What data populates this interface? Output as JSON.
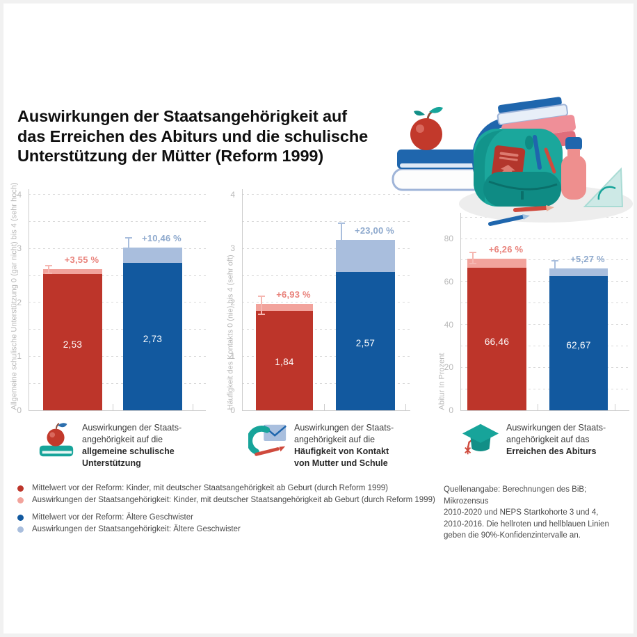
{
  "header": {
    "title_lines": [
      "Auswirkungen der Staatsangehörigkeit auf",
      "das Erreichen des Abiturs und die schulische",
      "Unterstützung der Mütter (Reform 1999)"
    ]
  },
  "colors": {
    "dark_red": "#bd352a",
    "light_red": "#f2a39c",
    "red_annotation": "#e9837c",
    "red_error": "#f5b7b1",
    "dark_blue": "#12599f",
    "light_blue": "#a9bedd",
    "blue_annotation": "#8ea9cd",
    "blue_error": "#a9bedd",
    "teal": "#17a49a",
    "grid": "#d9d9d9",
    "axis": "#cccccc",
    "tick_text": "#b9b9b9",
    "bar_label": "#ffffff"
  },
  "chart_data": [
    {
      "type": "bar",
      "ylabel": "Allgemeine schulische Unterstützung 0 (gar nicht) bis 4 (sehr hoch)",
      "ylim": [
        0,
        4.1
      ],
      "yticks": [
        0,
        1,
        2,
        3,
        4
      ],
      "grid_step": 0.5,
      "grid": true,
      "legend_position": "bottom",
      "bars": [
        {
          "name": "Kinder, mit deutscher Staatsangehörigkeit ab Geburt (durch Reform 1999)",
          "base_value": 2.53,
          "base_label": "2,53",
          "effect_percent_label": "+3,55 %",
          "total_value": 2.62,
          "ci_low": 2.54,
          "ci_high": 2.68,
          "palette": "red"
        },
        {
          "name": "Ältere Geschwister",
          "base_value": 2.73,
          "base_label": "2,73",
          "effect_percent_label": "+10,46 %",
          "total_value": 3.02,
          "ci_low": 2.81,
          "ci_high": 3.2,
          "palette": "blue"
        }
      ]
    },
    {
      "type": "bar",
      "ylabel": "Häufigkeit des Kontakts 0 (nie) bis 4 (sehr oft)",
      "ylim": [
        0,
        4.1
      ],
      "yticks": [
        0,
        1,
        2,
        3,
        4
      ],
      "grid_step": 0.5,
      "grid": true,
      "legend_position": "bottom",
      "bars": [
        {
          "name": "Kinder, mit deutscher Staatsangehörigkeit ab Geburt (durch Reform 1999)",
          "base_value": 1.84,
          "base_label": "1,84",
          "effect_percent_label": "+6,93 %",
          "total_value": 1.97,
          "ci_low": 1.78,
          "ci_high": 2.12,
          "palette": "red"
        },
        {
          "name": "Ältere Geschwister",
          "base_value": 2.57,
          "base_label": "2,57",
          "effect_percent_label": "+23,00 %",
          "total_value": 3.16,
          "ci_low": 2.88,
          "ci_high": 3.47,
          "palette": "blue"
        }
      ]
    },
    {
      "type": "bar",
      "ylabel": "Abitur In Prozent",
      "ylim": [
        0,
        92
      ],
      "yticks": [
        0,
        20,
        40,
        60,
        80
      ],
      "grid_step": 10,
      "grid": true,
      "legend_position": "bottom",
      "bars": [
        {
          "name": "Kinder, mit deutscher Staatsangehörigkeit ab Geburt (durch Reform 1999)",
          "base_value": 66.46,
          "base_label": "66,46",
          "effect_percent_label": "+6,26 %",
          "total_value": 70.62,
          "ci_low": 68.3,
          "ci_high": 73.4,
          "palette": "red"
        },
        {
          "name": "Ältere Geschwister",
          "base_value": 62.67,
          "base_label": "62,67",
          "effect_percent_label": "+5,27 %",
          "total_value": 65.97,
          "ci_low": 63.0,
          "ci_high": 69.5,
          "palette": "blue"
        }
      ]
    }
  ],
  "captions": [
    {
      "icon": "apple-on-book-icon",
      "prefix_lines": [
        "Auswirkungen der Staats-",
        "angehörigkeit auf die"
      ],
      "bold_lines": [
        "allgemeine schulische",
        "Unterstützung"
      ]
    },
    {
      "icon": "phone-envelope-icon",
      "prefix_lines": [
        "Auswirkungen der Staats-",
        "angehörigkeit auf die"
      ],
      "bold_lines": [
        "Häufigkeit von Kontakt",
        "von Mutter und Schule"
      ]
    },
    {
      "icon": "graduation-cap-icon",
      "prefix_lines": [
        "Auswirkungen der Staats-",
        "angehörigkeit auf das"
      ],
      "bold_lines": [
        "Erreichen des Abiturs",
        ""
      ]
    }
  ],
  "legend": {
    "items": [
      {
        "color_key": "dark_red",
        "label": "Mittelwert vor der Reform: Kinder, mit deutscher Staatsangehörigkeit ab Geburt (durch Reform 1999)"
      },
      {
        "color_key": "light_red",
        "label": "Auswirkungen der Staatsangehörigkeit: Kinder, mit deutscher Staatsangehörigkeit ab Geburt (durch Reform 1999)"
      },
      {
        "color_key": "dark_blue",
        "label": "Mittelwert vor der Reform: Ältere Geschwister"
      },
      {
        "color_key": "light_blue",
        "label": "Auswirkungen der Staatsangehörigkeit: Ältere Geschwister"
      }
    ]
  },
  "source_note": {
    "lines": [
      "Quellenangabe: Berechnungen des BiB; Mikrozensus",
      "2010-2020 und NEPS Startkohorte 3 und 4,",
      "2010-2016. Die hellroten und hellblauen Linien",
      "geben die 90%-Konfidenzintervalle an."
    ]
  },
  "illustration": {
    "parts": [
      "backpack",
      "passport",
      "book-stack",
      "apple",
      "pencils",
      "bottle",
      "set-square"
    ]
  }
}
